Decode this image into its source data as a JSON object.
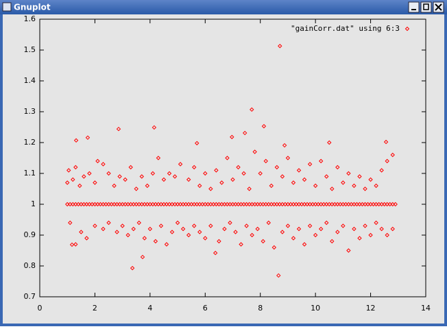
{
  "window": {
    "title": "Gnuplot"
  },
  "chart_data": {
    "type": "scatter",
    "xlim": [
      0,
      14
    ],
    "xticks": [
      0,
      2,
      4,
      6,
      8,
      10,
      12,
      14
    ],
    "ylim": [
      0.7,
      1.6
    ],
    "yticks": [
      0.7,
      0.8,
      0.9,
      1,
      1.1,
      1.2,
      1.3,
      1.4,
      1.5,
      1.6
    ],
    "legend": "top-right",
    "series": [
      {
        "name": "\"gainCorr.dat\" using 6:3",
        "color": "#ff0000",
        "x": [
          1,
          1.1,
          1.2,
          1.3,
          1.4,
          1.5,
          1.6,
          1.7,
          1.8,
          1.9,
          2,
          2.1,
          2.2,
          2.3,
          2.4,
          2.5,
          2.6,
          2.7,
          2.8,
          2.9,
          3,
          3.1,
          3.2,
          3.3,
          3.4,
          3.5,
          3.6,
          3.7,
          3.8,
          3.9,
          4,
          4.1,
          4.2,
          4.3,
          4.4,
          4.5,
          4.6,
          4.7,
          4.8,
          4.9,
          5,
          5.1,
          5.2,
          5.3,
          5.4,
          5.5,
          5.6,
          5.7,
          5.8,
          5.9,
          6,
          6.1,
          6.2,
          6.3,
          6.4,
          6.5,
          6.6,
          6.7,
          6.8,
          6.9,
          7,
          7.1,
          7.2,
          7.3,
          7.4,
          7.5,
          7.6,
          7.7,
          7.8,
          7.9,
          8,
          8.1,
          8.2,
          8.3,
          8.4,
          8.5,
          8.6,
          8.7,
          8.8,
          8.9,
          9,
          9.1,
          9.2,
          9.3,
          9.4,
          9.5,
          9.6,
          9.7,
          9.8,
          9.9,
          10,
          10.1,
          10.2,
          10.3,
          10.4,
          10.5,
          10.6,
          10.7,
          10.8,
          10.9,
          11,
          11.1,
          11.2,
          11.3,
          11.4,
          11.5,
          11.6,
          11.7,
          11.8,
          11.9,
          12,
          12.1,
          12.2,
          12.3,
          12.4,
          12.5,
          12.6,
          12.7,
          12.8,
          12.9,
          1,
          1.05,
          1.2,
          1.3,
          1.45,
          1.6,
          1.8,
          2,
          2.1,
          2.3,
          2.5,
          2.7,
          2.9,
          3.1,
          3.3,
          3.5,
          3.7,
          3.9,
          4.1,
          4.3,
          4.5,
          4.7,
          4.9,
          5.1,
          5.4,
          5.6,
          5.8,
          6,
          6.2,
          6.4,
          6.6,
          6.8,
          7,
          7.2,
          7.4,
          7.6,
          7.8,
          8,
          8.2,
          8.4,
          8.6,
          8.8,
          9,
          9.2,
          9.4,
          9.6,
          9.8,
          10,
          10.2,
          10.4,
          10.6,
          10.8,
          11,
          11.2,
          11.4,
          11.6,
          11.8,
          12,
          12.2,
          12.4,
          12.6,
          12.8,
          1.1,
          1.3,
          1.5,
          1.7,
          2,
          2.3,
          2.5,
          2.8,
          3,
          3.2,
          3.4,
          3.6,
          3.8,
          4,
          4.2,
          4.4,
          4.6,
          4.8,
          5,
          5.2,
          5.4,
          5.6,
          5.8,
          6,
          6.2,
          6.5,
          6.7,
          6.9,
          7.1,
          7.3,
          7.5,
          7.7,
          7.9,
          8.1,
          8.3,
          8.5,
          8.8,
          9,
          9.2,
          9.4,
          9.6,
          9.8,
          10,
          10.2,
          10.4,
          10.6,
          10.8,
          11,
          11.2,
          11.4,
          11.6,
          11.8,
          12,
          12.2,
          12.4,
          12.6,
          12.8,
          8.71,
          7.69,
          8.13,
          2.86,
          4.15,
          1.74,
          1.32,
          7.44,
          12.56,
          10.5,
          6.97,
          5.7,
          8.88,
          8.66,
          3.36,
          3.73,
          6.37,
          1.17
        ],
        "y": [
          1,
          1,
          1,
          1,
          1,
          1,
          1,
          1,
          1,
          1,
          1,
          1,
          1,
          1,
          1,
          1,
          1,
          1,
          1,
          1,
          1,
          1,
          1,
          1,
          1,
          1,
          1,
          1,
          1,
          1,
          1,
          1,
          1,
          1,
          1,
          1,
          1,
          1,
          1,
          1,
          1,
          1,
          1,
          1,
          1,
          1,
          1,
          1,
          1,
          1,
          1,
          1,
          1,
          1,
          1,
          1,
          1,
          1,
          1,
          1,
          1,
          1,
          1,
          1,
          1,
          1,
          1,
          1,
          1,
          1,
          1,
          1,
          1,
          1,
          1,
          1,
          1,
          1,
          1,
          1,
          1,
          1,
          1,
          1,
          1,
          1,
          1,
          1,
          1,
          1,
          1,
          1,
          1,
          1,
          1,
          1,
          1,
          1,
          1,
          1,
          1,
          1,
          1,
          1,
          1,
          1,
          1,
          1,
          1,
          1,
          1,
          1,
          1,
          1,
          1,
          1,
          1,
          1,
          1,
          1,
          1.07,
          1.11,
          1.08,
          1.12,
          1.06,
          1.09,
          1.1,
          1.07,
          1.14,
          1.13,
          1.1,
          1.06,
          1.09,
          1.08,
          1.12,
          1.05,
          1.09,
          1.06,
          1.1,
          1.15,
          1.08,
          1.1,
          1.09,
          1.13,
          1.08,
          1.12,
          1.06,
          1.1,
          1.05,
          1.11,
          1.07,
          1.15,
          1.08,
          1.12,
          1.1,
          1.05,
          1.17,
          1.1,
          1.14,
          1.06,
          1.12,
          1.09,
          1.15,
          1.07,
          1.11,
          1.08,
          1.13,
          1.06,
          1.14,
          1.09,
          1.05,
          1.12,
          1.07,
          1.1,
          1.06,
          1.09,
          1.05,
          1.08,
          1.06,
          1.11,
          1.14,
          1.16,
          0.94,
          0.87,
          0.91,
          0.89,
          0.93,
          0.92,
          0.94,
          0.91,
          0.93,
          0.9,
          0.92,
          0.94,
          0.89,
          0.92,
          0.88,
          0.93,
          0.87,
          0.91,
          0.94,
          0.92,
          0.9,
          0.93,
          0.91,
          0.89,
          0.93,
          0.88,
          0.92,
          0.94,
          0.91,
          0.87,
          0.93,
          0.9,
          0.92,
          0.88,
          0.94,
          0.86,
          0.91,
          0.93,
          0.89,
          0.92,
          0.87,
          0.93,
          0.9,
          0.92,
          0.94,
          0.88,
          0.91,
          0.93,
          0.85,
          0.92,
          0.89,
          0.93,
          0.9,
          0.94,
          0.92,
          0.9,
          0.92,
          1.513,
          1.307,
          1.253,
          1.244,
          1.249,
          1.216,
          1.207,
          1.231,
          1.202,
          1.2,
          1.218,
          1.198,
          1.191,
          0.769,
          0.793,
          0.829,
          0.842,
          0.869
        ]
      }
    ]
  }
}
